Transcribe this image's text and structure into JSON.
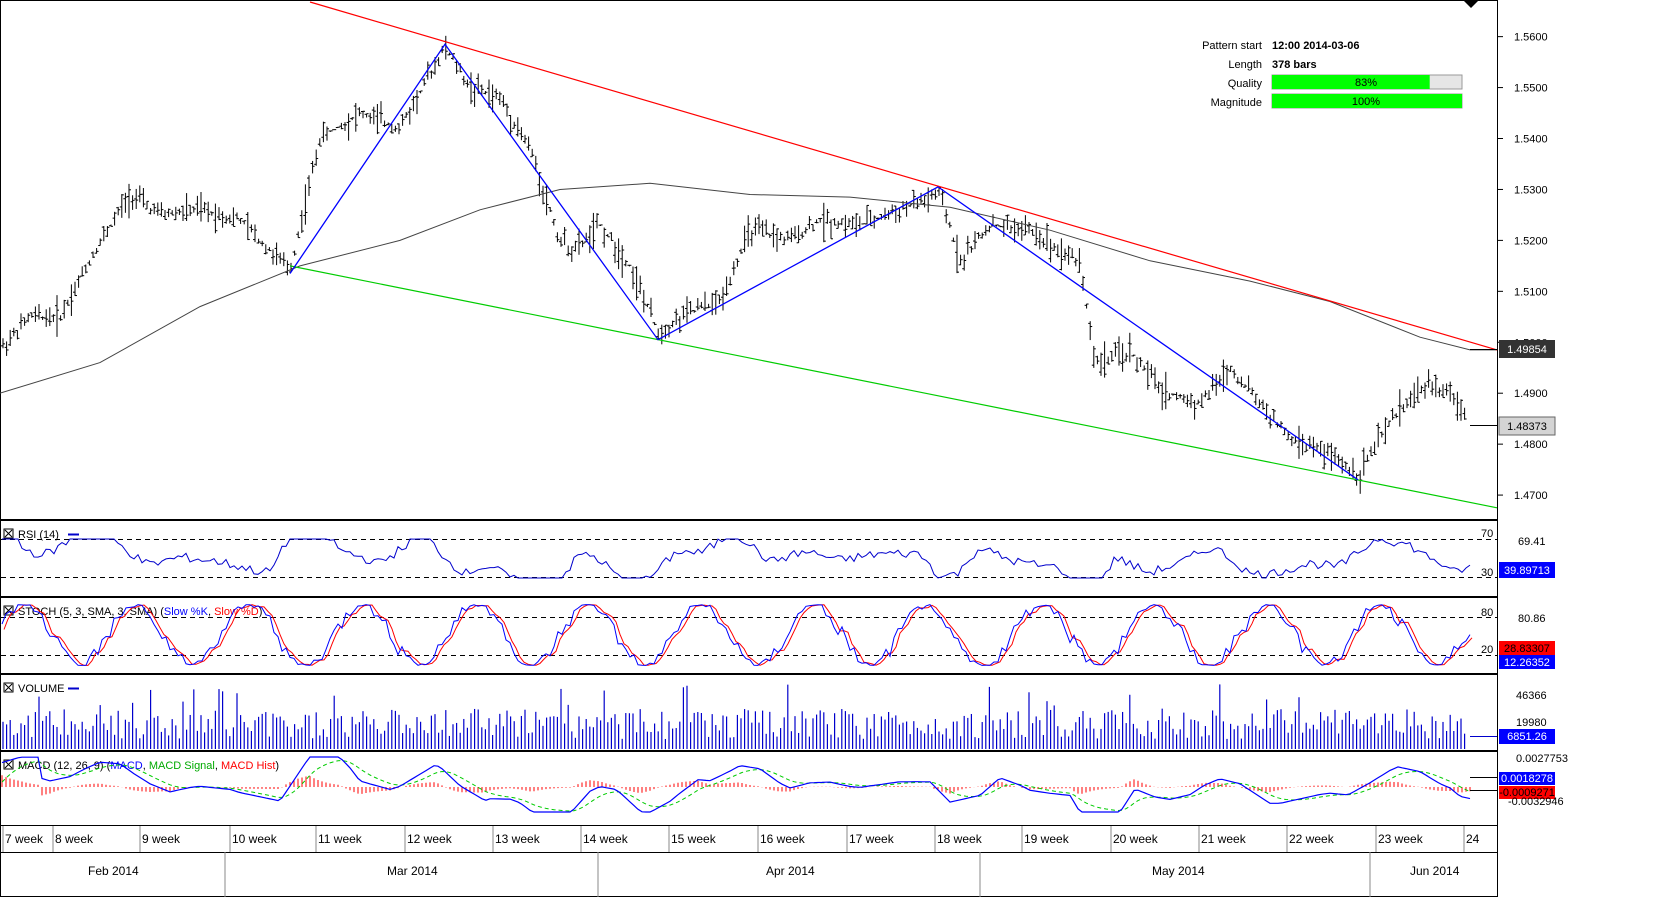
{
  "pattern_info": {
    "pattern_start_label": "Pattern start",
    "pattern_start_value": "12:00 2014-03-06",
    "length_label": "Length",
    "length_value": "378 bars",
    "quality_label": "Quality",
    "quality_value": "83%",
    "quality_fraction": 0.83,
    "magnitude_label": "Magnitude",
    "magnitude_value": "100%",
    "magnitude_fraction": 1.0
  },
  "colors": {
    "price_bars": "#000000",
    "resistance_line": "#ff0000",
    "support_line": "#00cc00",
    "zigzag": "#0000ff",
    "moving_average": "#444444",
    "quality_fill": "#00ff00",
    "rsi_line": "#0000cc",
    "stoch_k": "#0000ff",
    "stoch_d": "#ff0000",
    "volume": "#0000cc",
    "macd_line": "#0000ff",
    "macd_signal": "#00cc00",
    "macd_hist": "#ff0000"
  },
  "chart_data": [
    {
      "type": "line",
      "panel": "price",
      "y_ticks": [
        "1.5600",
        "1.5500",
        "1.5400",
        "1.5300",
        "1.5200",
        "1.5100",
        "1.5000",
        "1.4900",
        "1.4800",
        "1.4700"
      ],
      "ylim": [
        1.4655,
        1.5668
      ],
      "current_price_label": "1.48373",
      "current_price": 1.48373,
      "ma_value_label": "1.49854",
      "ma_value": 1.49854,
      "zigzag_points": [
        {
          "x": "Mar 2014 wk10",
          "y": 1.5135
        },
        {
          "x": "Mar 2014 wk12",
          "y": 1.5585
        },
        {
          "x": "Apr 2014 wk14",
          "y": 1.5005
        },
        {
          "x": "Apr 2014 wk17",
          "y": 1.5305
        },
        {
          "x": "May 2014 wk19",
          "y": 1.511
        },
        {
          "x": "Jun 2014 wk22",
          "y": 1.473
        }
      ],
      "resistance_line": [
        1.5668,
        1.4985
      ],
      "support_line": [
        1.515,
        1.4675
      ]
    },
    {
      "type": "line",
      "panel": "rsi",
      "title": "RSI (14)",
      "levels": [
        "70",
        "30"
      ],
      "top_label": "69.41",
      "current_label": "39.89713"
    },
    {
      "type": "line",
      "panel": "stoch",
      "title": "STOCH (5, 3, SMA, 3, SMA)",
      "legend_k": "Slow %K",
      "legend_d": "Slow %D",
      "levels": [
        "80",
        "20"
      ],
      "top_label": "80.86",
      "current_d_label": "28.83307",
      "current_k_label": "12.26352"
    },
    {
      "type": "bar",
      "panel": "volume",
      "title": "VOLUME",
      "tick_labels": [
        "46366",
        "19980"
      ],
      "current_label": "6851.26"
    },
    {
      "type": "line",
      "panel": "macd",
      "title": "MACD (12, 26, 9)",
      "legend_macd": "MACD",
      "legend_signal": "MACD Signal",
      "legend_hist": "MACD Hist",
      "top_label": "0.0027753",
      "label_1": "0.0018278",
      "label_2": "-0.0009271",
      "bottom_label": "-0.0032946"
    }
  ],
  "x_axis": {
    "weeks": [
      "7 week",
      "8 week",
      "9 week",
      "10 week",
      "11 week",
      "12 week",
      "13 week",
      "14 week",
      "15 week",
      "16 week",
      "17 week",
      "18 week",
      "19 week",
      "20 week",
      "21 week",
      "22 week",
      "23 week",
      "24"
    ],
    "months": [
      "Feb 2014",
      "Mar 2014",
      "Apr 2014",
      "May 2014",
      "Jun 2014"
    ]
  }
}
